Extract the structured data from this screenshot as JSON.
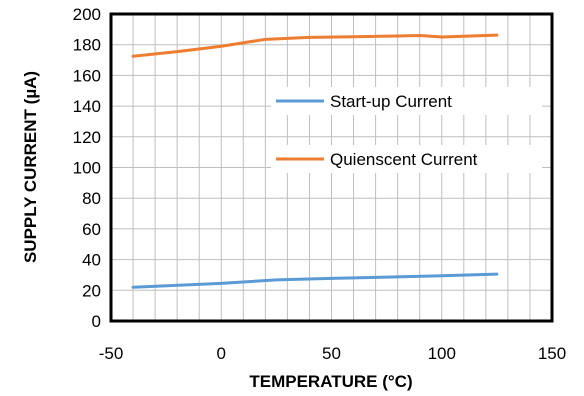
{
  "chart_data": {
    "type": "line",
    "title": "",
    "xlabel": "TEMPERATURE (°C)",
    "ylabel": "SUPPLY CURRENT (µA)",
    "xlim": [
      -50,
      150
    ],
    "ylim": [
      0,
      200
    ],
    "x_ticks": [
      -50,
      0,
      50,
      100,
      150
    ],
    "y_ticks": [
      0,
      20,
      40,
      60,
      80,
      100,
      120,
      140,
      160,
      180,
      200
    ],
    "grid": true,
    "legend_position": "right, mid-upper",
    "series": [
      {
        "name": "Start-up Current",
        "color": "#5B9BD5",
        "x": [
          -40,
          0,
          25,
          50,
          75,
          100,
          125
        ],
        "y": [
          22,
          24.5,
          26.8,
          27.8,
          28.6,
          29.5,
          30.5
        ]
      },
      {
        "name": "Quienscent Current",
        "color": "#ED7D31",
        "x": [
          -40,
          -20,
          0,
          20,
          40,
          60,
          80,
          90,
          100,
          110,
          125
        ],
        "y": [
          172.5,
          175.5,
          179,
          183.5,
          184.8,
          185.2,
          185.7,
          186,
          185,
          185.5,
          186.2
        ]
      }
    ]
  }
}
